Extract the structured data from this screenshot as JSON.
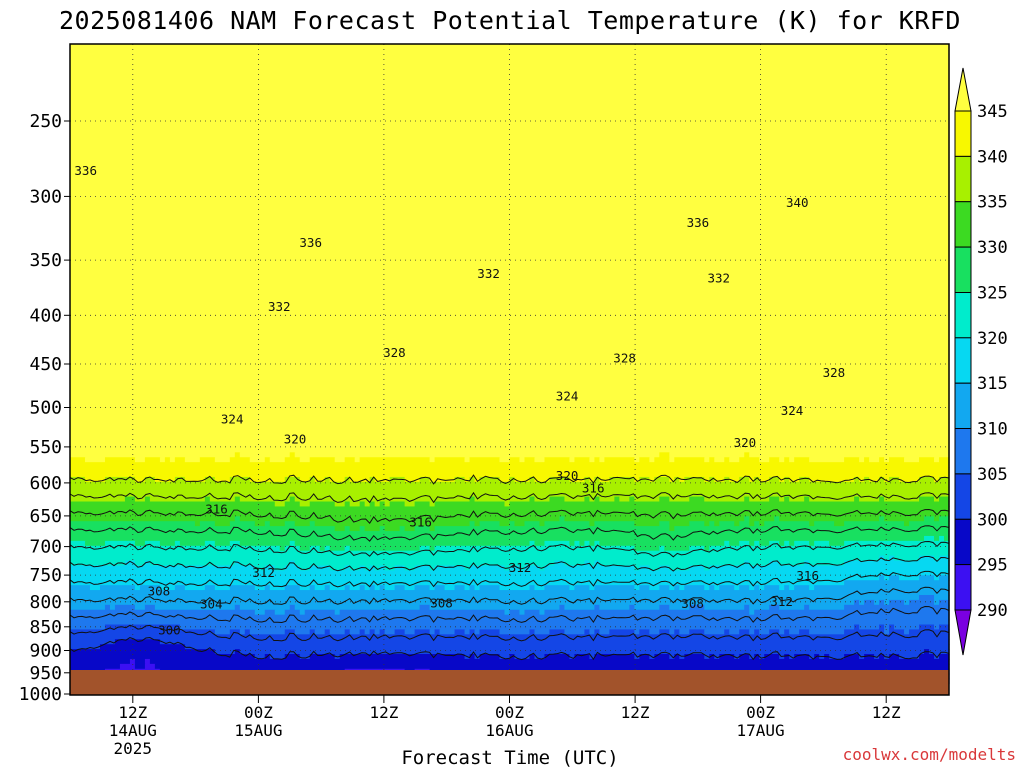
{
  "chart_data": {
    "type": "contour",
    "title": "2025081406 NAM Forecast Potential Temperature (K) for KRFD",
    "xlabel": "Forecast Time (UTC)",
    "ylabel": "",
    "credit": "coolwx.com/modelts",
    "y_scale": "log-pressure",
    "y_range_hpa": [
      1000,
      200
    ],
    "pressure_ticks": [
      250,
      300,
      350,
      400,
      450,
      500,
      550,
      600,
      650,
      700,
      750,
      800,
      850,
      900,
      950,
      1000
    ],
    "forecast_hours_range": [
      0,
      84
    ],
    "x_ticks": [
      {
        "hour": 6,
        "line1": "12Z",
        "line2": "14AUG",
        "line3": "2025"
      },
      {
        "hour": 18,
        "line1": "00Z",
        "line2": "15AUG",
        "line3": ""
      },
      {
        "hour": 30,
        "line1": "12Z",
        "line2": "",
        "line3": ""
      },
      {
        "hour": 42,
        "line1": "00Z",
        "line2": "16AUG",
        "line3": ""
      },
      {
        "hour": 54,
        "line1": "12Z",
        "line2": "",
        "line3": ""
      },
      {
        "hour": 66,
        "line1": "00Z",
        "line2": "17AUG",
        "line3": ""
      },
      {
        "hour": 78,
        "line1": "12Z",
        "line2": "",
        "line3": ""
      }
    ],
    "grid": true,
    "colorbar": {
      "levels": [
        290,
        295,
        300,
        305,
        310,
        315,
        320,
        325,
        330,
        335,
        340,
        345
      ],
      "colors": [
        "#7a00e0",
        "#3c10f2",
        "#0808c8",
        "#1446e6",
        "#1e78ee",
        "#12a8f0",
        "#06d8f2",
        "#00eccc",
        "#18e060",
        "#3cda22",
        "#a8f000",
        "#f8f800",
        "#ffff40"
      ]
    },
    "contour_levels_K": [
      300,
      304,
      308,
      312,
      316,
      320,
      324,
      328,
      332,
      336,
      340
    ],
    "contour_labels": [
      {
        "text": "336",
        "hour": 1.5,
        "p": 282
      },
      {
        "text": "336",
        "hour": 23,
        "p": 336
      },
      {
        "text": "332",
        "hour": 20,
        "p": 392
      },
      {
        "text": "332",
        "hour": 40,
        "p": 362
      },
      {
        "text": "332",
        "hour": 62,
        "p": 366
      },
      {
        "text": "336",
        "hour": 60,
        "p": 320
      },
      {
        "text": "340",
        "hour": 69.5,
        "p": 305
      },
      {
        "text": "328",
        "hour": 31,
        "p": 438
      },
      {
        "text": "328",
        "hour": 53,
        "p": 444
      },
      {
        "text": "328",
        "hour": 73,
        "p": 460
      },
      {
        "text": "324",
        "hour": 15.5,
        "p": 515
      },
      {
        "text": "324",
        "hour": 47.5,
        "p": 487
      },
      {
        "text": "324",
        "hour": 69,
        "p": 504
      },
      {
        "text": "320",
        "hour": 21.5,
        "p": 540
      },
      {
        "text": "320",
        "hour": 47.5,
        "p": 590
      },
      {
        "text": "320",
        "hour": 64.5,
        "p": 545
      },
      {
        "text": "316",
        "hour": 14,
        "p": 640
      },
      {
        "text": "316",
        "hour": 33.5,
        "p": 660
      },
      {
        "text": "316",
        "hour": 50,
        "p": 608
      },
      {
        "text": "316",
        "hour": 70.5,
        "p": 752
      },
      {
        "text": "312",
        "hour": 18.5,
        "p": 746
      },
      {
        "text": "312",
        "hour": 43,
        "p": 737
      },
      {
        "text": "312",
        "hour": 68,
        "p": 800
      },
      {
        "text": "308",
        "hour": 8.5,
        "p": 780
      },
      {
        "text": "308",
        "hour": 35.5,
        "p": 803
      },
      {
        "text": "308",
        "hour": 59.5,
        "p": 804
      },
      {
        "text": "304",
        "hour": 13.5,
        "p": 805
      },
      {
        "text": "300",
        "hour": 9.5,
        "p": 858
      }
    ]
  }
}
